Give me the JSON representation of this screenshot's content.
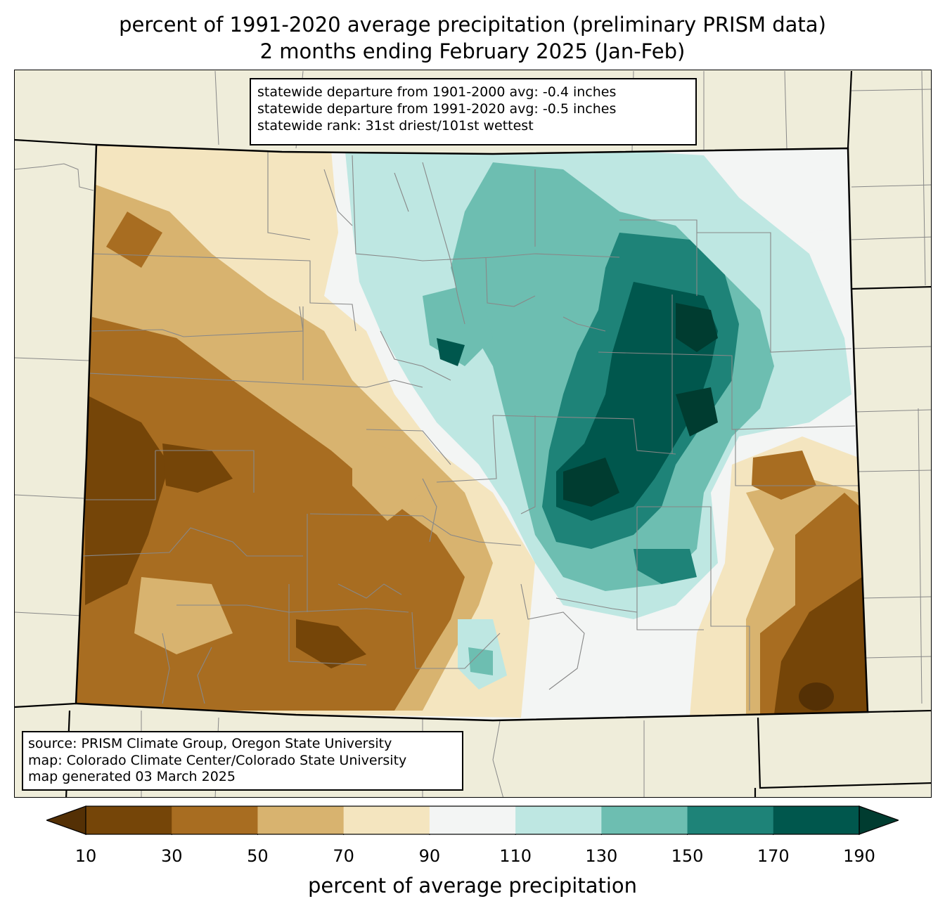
{
  "title": {
    "line1": "percent of 1991-2020 average precipitation (preliminary PRISM data)",
    "line2": "2 months ending February 2025 (Jan-Feb)"
  },
  "stats": {
    "line1": "statewide departure from 1901-2000 avg: -0.4 inches",
    "line2": "statewide departure from 1991-2020 avg: -0.5 inches",
    "line3": "statewide rank: 31st driest/101st wettest"
  },
  "source": {
    "line1": "source: PRISM Climate Group, Oregon State University",
    "line2": "map: Colorado Climate Center/Colorado State University",
    "line3": "map generated 03 March 2025"
  },
  "colorbar": {
    "label": "percent of average precipitation",
    "ticks": [
      "10",
      "30",
      "50",
      "70",
      "90",
      "110",
      "130",
      "150",
      "170",
      "190"
    ],
    "under_color": "#543005",
    "over_color": "#003c30",
    "bin_colors": [
      "#754508",
      "#a86d21",
      "#d8b36f",
      "#f4e5bf",
      "#f3f5f4",
      "#bee7e2",
      "#6dbeb1",
      "#1e8378",
      "#00574d"
    ]
  },
  "colors": {
    "land_outside": "#efedda",
    "state_border": "#000000",
    "county_border": "#808080"
  }
}
